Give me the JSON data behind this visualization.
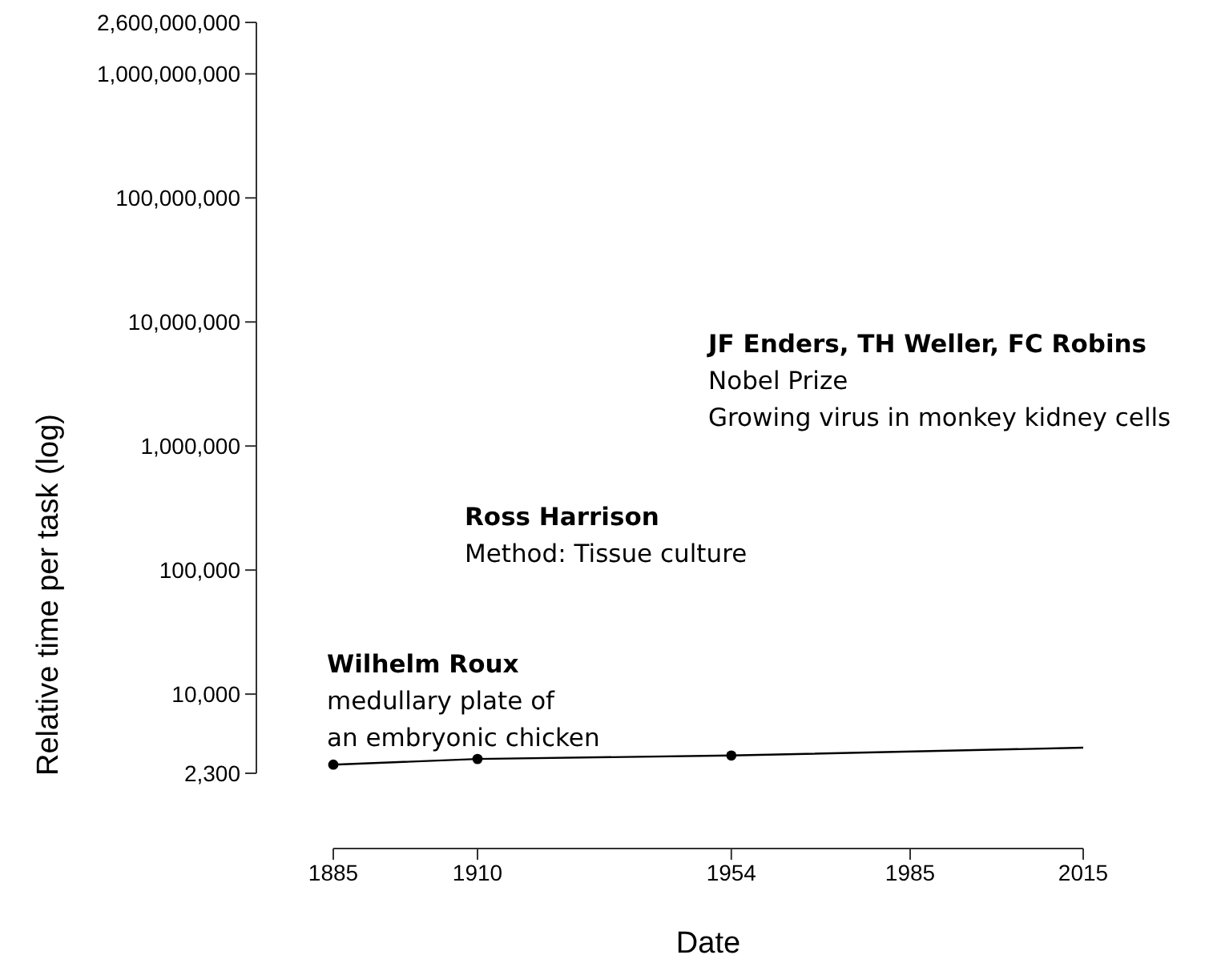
{
  "chart_data": {
    "type": "line",
    "xlabel": "Date",
    "ylabel": "Relative time per task (log)",
    "log": "y",
    "xlim": [
      1885,
      2015
    ],
    "xticks": [
      1885,
      1910,
      1954,
      1985,
      2015
    ],
    "ylim": [
      2300,
      2600000000
    ],
    "yticks": [
      {
        "value": 2300,
        "label": "2,300"
      },
      {
        "value": 10000,
        "label": "10,000"
      },
      {
        "value": 100000,
        "label": "100,000"
      },
      {
        "value": 1000000,
        "label": "1,000,000"
      },
      {
        "value": 10000000,
        "label": "10,000,000"
      },
      {
        "value": 100000000,
        "label": "100,000,000"
      },
      {
        "value": 1000000000,
        "label": "1,000,000,000"
      },
      {
        "value": 2600000000,
        "label": "2,600,000,000"
      }
    ],
    "grid": false,
    "series": [
      {
        "color": "#000000",
        "marker": "none",
        "x": [
          1885,
          1910,
          1954,
          2015
        ],
        "values": [
          2700,
          3000,
          3200,
          3700
        ]
      },
      {
        "type": "scatter",
        "color": "#000000",
        "marker": "circle",
        "x": [
          1885,
          1910,
          1954
        ],
        "values": [
          2700,
          3000,
          3200
        ]
      }
    ],
    "annotations": [
      "Wilhelm Roux\nmedullary plate of\nan embryonic chicken",
      "Ross Harrison\nMethod: Tissue culture",
      "JF Enders, TH Weller, FC Robins\nNobel Prize\nGrowing virus in monkey kidney cells"
    ]
  }
}
